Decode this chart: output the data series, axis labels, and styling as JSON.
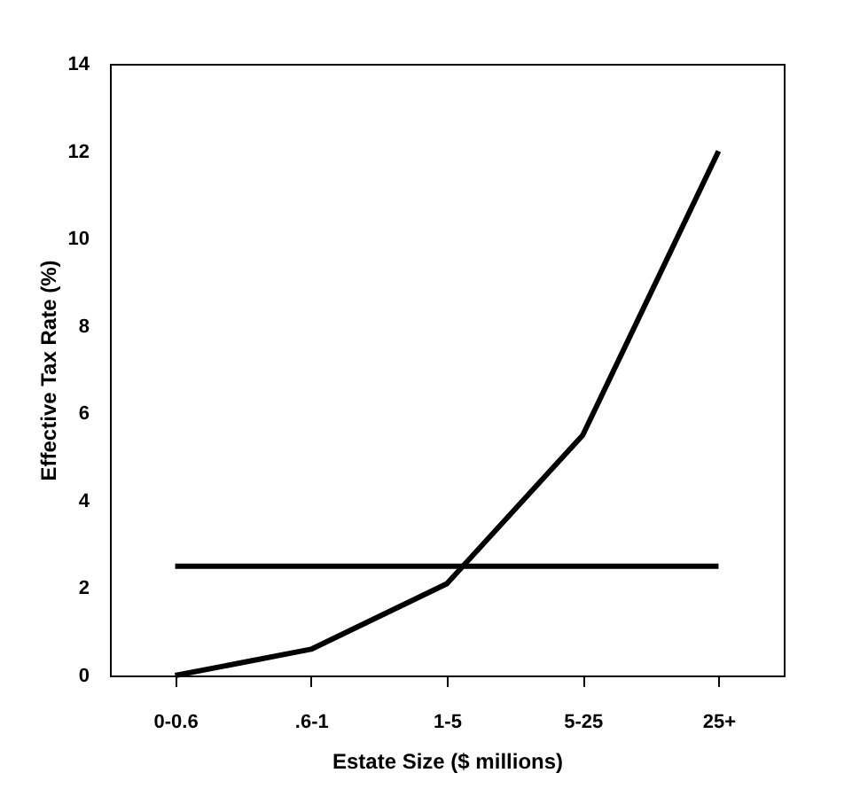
{
  "chart_data": {
    "type": "line",
    "xlabel": "Estate Size ($ millions)",
    "ylabel": "Effective Tax Rate (%)",
    "categories": [
      "0-0.6",
      ".6-1",
      "1-5",
      "5-25",
      "25+"
    ],
    "series": [
      {
        "color": "#000000",
        "values": [
          0,
          0.6,
          2.1,
          5.5,
          12
        ]
      },
      {
        "color": "#000000",
        "values": [
          2.5,
          2.5,
          2.5,
          2.5,
          2.5
        ]
      }
    ],
    "ylim": [
      0,
      14
    ],
    "yticks": [
      0,
      2,
      4,
      6,
      8,
      10,
      12,
      14
    ],
    "grid": false,
    "marker": "none",
    "line_style": "solid"
  }
}
